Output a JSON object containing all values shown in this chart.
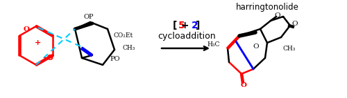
{
  "bg_color": "#ffffff",
  "arrow_color": "#000000",
  "red_color": "#ff0000",
  "blue_color": "#0000ff",
  "cyan_color": "#00ccff",
  "black_color": "#000000",
  "label_5plus2": "[5 + 2]",
  "label_cycloaddition": "cycloaddition",
  "label_product": "harringtonolide",
  "figsize": [
    5.0,
    1.42
  ],
  "dpi": 100
}
